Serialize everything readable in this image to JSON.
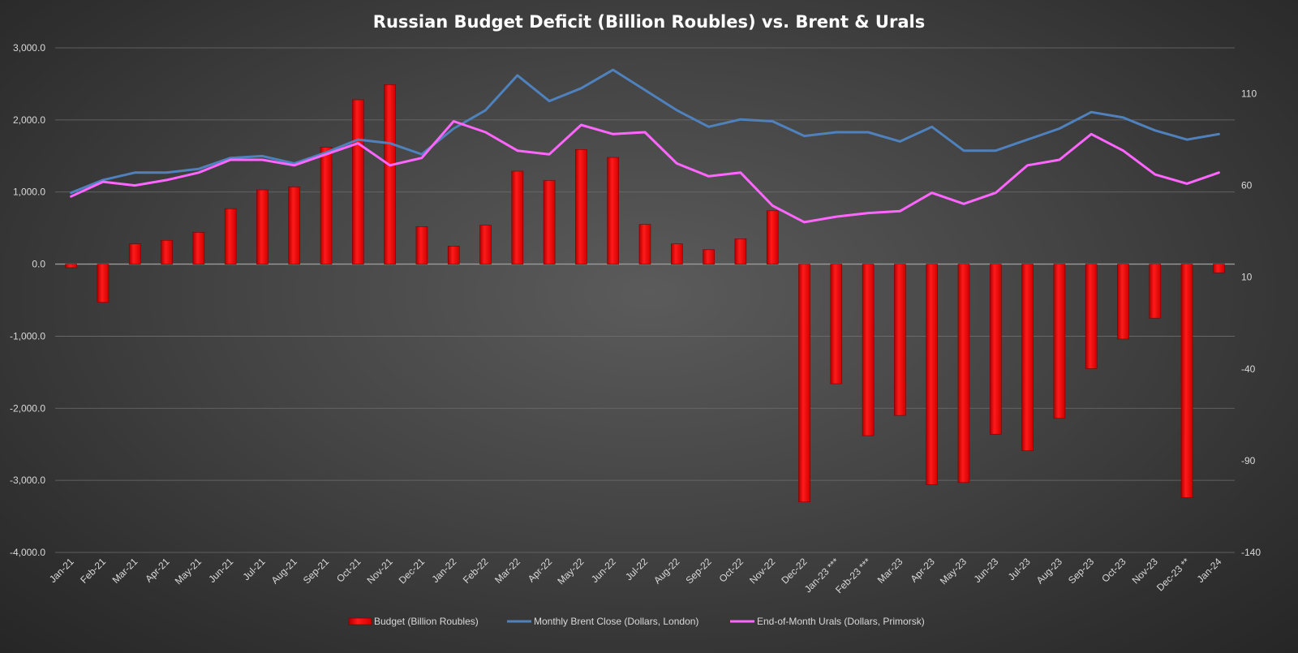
{
  "chart_data": {
    "type": "bar+line",
    "title": "Russian Budget Deficit (Billion Roubles) vs. Brent & Urals",
    "categories": [
      "Jan-21",
      "Feb-21",
      "Mar-21",
      "Apr-21",
      "May-21",
      "Jun-21",
      "Jul-21",
      "Aug-21",
      "Sep-21",
      "Oct-21",
      "Nov-21",
      "Dec-21",
      "Jan-22",
      "Feb-22",
      "Mar-22",
      "Apr-22",
      "May-22",
      "Jun-22",
      "Jul-22",
      "Aug-22",
      "Sep-22",
      "Oct-22",
      "Nov-22",
      "Dec-22",
      "Jan-23 ***",
      "Feb-23 ***",
      "Mar-23",
      "Apr-23",
      "May-23",
      "Jun-23",
      "Jul-23",
      "Aug-23",
      "Sep-23",
      "Oct-23",
      "Nov-23",
      "Dec-23 **",
      "Jan-24"
    ],
    "left_axis": {
      "min": -4000,
      "max": 3000,
      "step": 1000,
      "tick_labels": [
        "3,000.0",
        "2,000.0",
        "1,000.0",
        "0.0",
        "-1,000.0",
        "-2,000.0",
        "-3,000.0",
        "-4,000.0"
      ]
    },
    "right_axis": {
      "min": -140,
      "max": 135,
      "tick_values": [
        110,
        60,
        10,
        -40,
        -90,
        -140
      ],
      "tick_labels": [
        "110",
        "60",
        "10",
        "-40",
        "-90",
        "-140"
      ]
    },
    "series": [
      {
        "name": "Budget (Billion Roubles)",
        "kind": "bar",
        "axis": "left",
        "color": "#ff0000",
        "values": [
          -50,
          -530,
          280,
          330,
          440,
          770,
          1030,
          1070,
          1620,
          2280,
          2490,
          520,
          250,
          540,
          1290,
          1160,
          1590,
          1480,
          550,
          280,
          200,
          350,
          740,
          -3300,
          -1660,
          -2380,
          -2100,
          -3060,
          -3030,
          -2360,
          -2590,
          -2140,
          -1450,
          -1040,
          -750,
          -3240,
          -120
        ]
      },
      {
        "name": "Monthly Brent Close (Dollars, London)",
        "kind": "line",
        "axis": "right",
        "color": "#4f81bd",
        "values": [
          56,
          63,
          67,
          67,
          69,
          75,
          76,
          72,
          78,
          85,
          83,
          77,
          91,
          101,
          120,
          106,
          113,
          123,
          112,
          101,
          92,
          96,
          95,
          87,
          89,
          89,
          84,
          92,
          79,
          79,
          85,
          91,
          100,
          97,
          90,
          85,
          88
        ]
      },
      {
        "name": "End-of-Month Urals (Dollars, Primorsk)",
        "kind": "line",
        "axis": "right",
        "color": "#ff66ff",
        "values": [
          54,
          62,
          60,
          63,
          67,
          74,
          74,
          71,
          77,
          83,
          71,
          75,
          95,
          89,
          79,
          77,
          93,
          88,
          89,
          72,
          65,
          67,
          49,
          40,
          43,
          45,
          46,
          56,
          50,
          56,
          71,
          74,
          88,
          79,
          66,
          61,
          67
        ]
      }
    ],
    "legend_position": "bottom"
  }
}
